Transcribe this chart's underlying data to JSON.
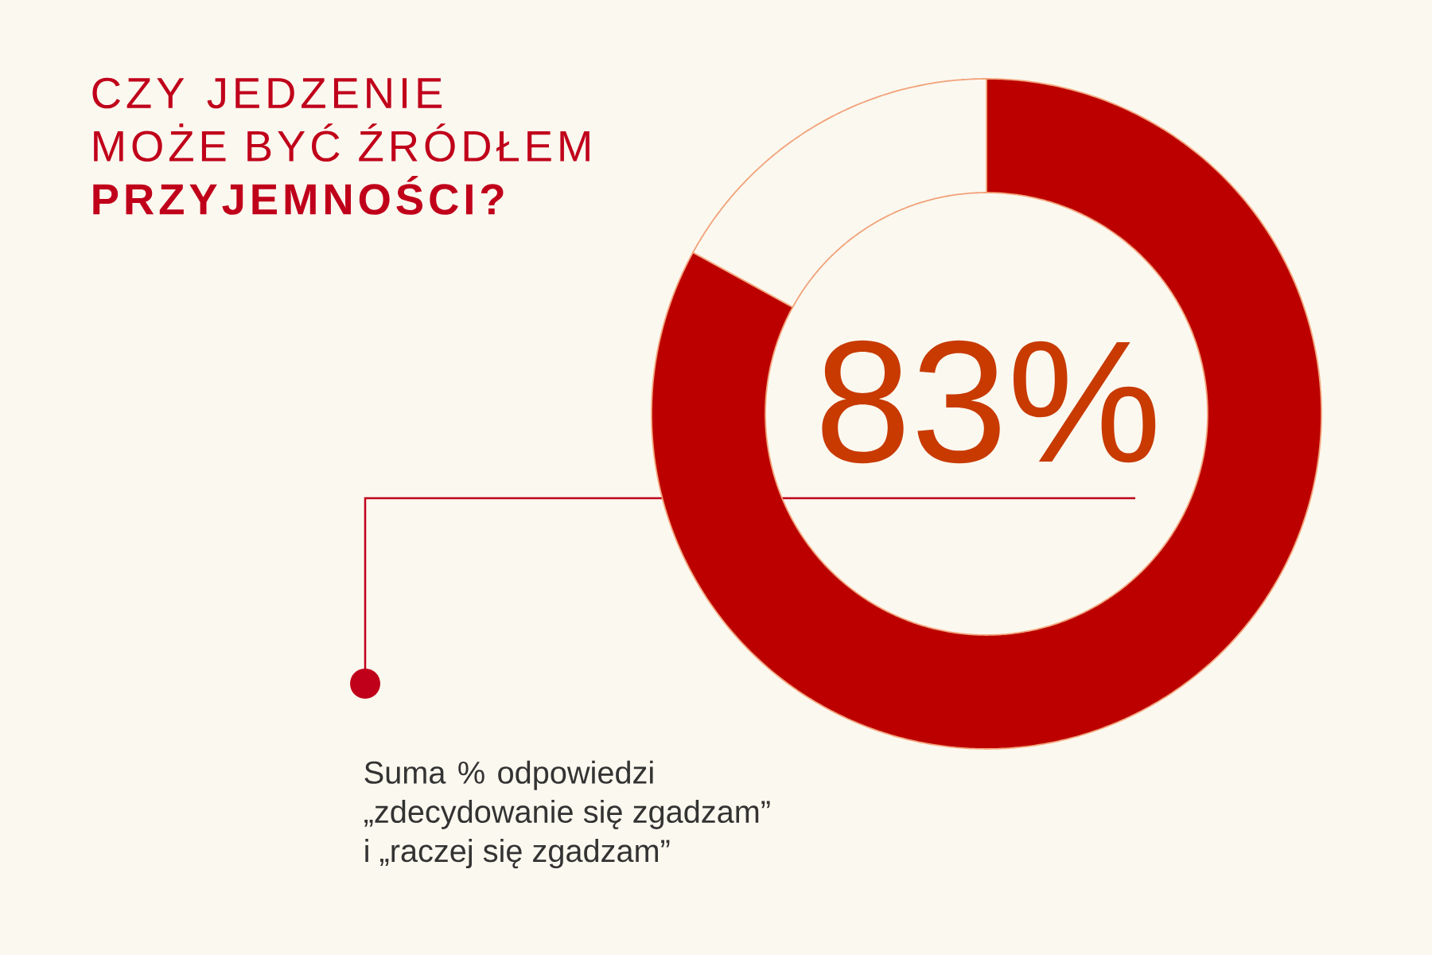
{
  "chart_data": {
    "type": "donut",
    "title": "CZY JEDZENIE MOŻE BYĆ ŹRÓDŁEM **PRZYJEMNOŚCI?**",
    "categories": [
      null,
      null
    ],
    "values": [
      83,
      17
    ],
    "colors": [
      "#bc0000",
      "#fbf8ef"
    ],
    "value_labels": [
      "83%",
      null
    ],
    "annotations": [
      "Suma % odpowiedzi „zdecydowanie się zgadzam” i „raczej się zgadzam”"
    ]
  }
}
